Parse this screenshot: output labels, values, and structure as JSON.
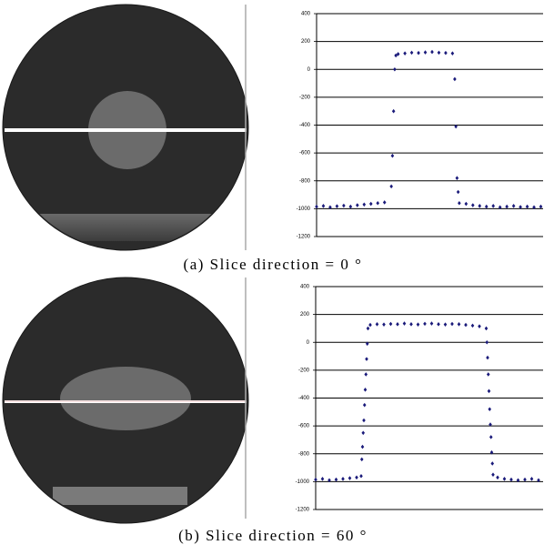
{
  "chart_data": [
    {
      "type": "scatter",
      "caption": "(a) Slice direction = 0 °",
      "color": "#1a1a7a",
      "x": [
        0,
        3,
        6,
        9,
        12,
        15,
        18,
        21,
        24,
        27,
        30,
        33,
        33.5,
        34,
        34.5,
        35,
        36,
        39,
        42,
        45,
        48,
        51,
        54,
        57,
        60,
        61,
        61.5,
        62,
        62.5,
        63,
        66,
        69,
        72,
        75,
        78,
        81,
        84,
        87,
        90,
        93,
        96,
        99
      ],
      "values": [
        -985,
        -980,
        -990,
        -982,
        -978,
        -985,
        -975,
        -970,
        -965,
        -960,
        -955,
        -840,
        -620,
        -300,
        0,
        100,
        110,
        115,
        120,
        118,
        122,
        125,
        120,
        118,
        115,
        -70,
        -410,
        -780,
        -880,
        -960,
        -965,
        -975,
        -980,
        -985,
        -980,
        -990,
        -985,
        -980,
        -988,
        -985,
        -990,
        -985
      ],
      "xlim": [
        0,
        100
      ],
      "ylim": [
        -1200,
        400
      ],
      "yticks": [
        -1200,
        -1000,
        -800,
        -600,
        -400,
        -200,
        0,
        200,
        400
      ],
      "grid": true
    },
    {
      "type": "scatter",
      "caption": "(b) Slice direction = 60 °",
      "color": "#1a1a7a",
      "x": [
        0,
        3,
        6,
        9,
        12,
        15,
        18,
        20,
        20.3,
        20.6,
        20.9,
        21.2,
        21.5,
        21.8,
        22.1,
        22.4,
        22.7,
        23,
        24,
        27,
        30,
        33,
        36,
        39,
        42,
        45,
        48,
        51,
        54,
        57,
        60,
        63,
        66,
        69,
        72,
        75,
        75.3,
        75.6,
        75.9,
        76.2,
        76.5,
        76.8,
        77.1,
        77.4,
        77.7,
        78,
        80,
        83,
        86,
        89,
        92,
        95,
        98
      ],
      "values": [
        -985,
        -980,
        -990,
        -985,
        -980,
        -975,
        -970,
        -960,
        -840,
        -750,
        -650,
        -560,
        -450,
        -340,
        -230,
        -120,
        -10,
        100,
        125,
        130,
        128,
        132,
        130,
        135,
        130,
        128,
        133,
        135,
        130,
        128,
        132,
        130,
        125,
        120,
        115,
        100,
        0,
        -110,
        -230,
        -350,
        -480,
        -590,
        -680,
        -790,
        -870,
        -950,
        -970,
        -980,
        -985,
        -990,
        -985,
        -980,
        -990
      ],
      "xlim": [
        0,
        100
      ],
      "ylim": [
        -1200,
        400
      ],
      "yticks": [
        -1200,
        -1000,
        -800,
        -600,
        -400,
        -200,
        0,
        200,
        400
      ],
      "grid": true
    }
  ]
}
